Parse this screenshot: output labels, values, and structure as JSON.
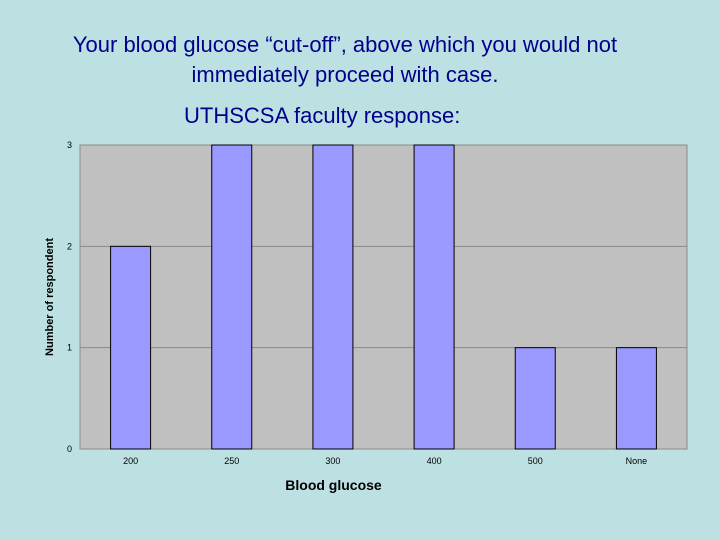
{
  "slide": {
    "title_line1": "Your blood glucose “cut-off”, above which you would not",
    "title_line2": "immediately proceed with case.",
    "subtitle": "UTHSCSA faculty response:"
  },
  "chart_data": {
    "type": "bar",
    "categories": [
      "200",
      "250",
      "300",
      "400",
      "500",
      "None"
    ],
    "values": [
      2,
      3,
      3,
      3,
      1,
      1
    ],
    "xlabel": "Blood glucose",
    "ylabel": "Number of respondent",
    "ylim": [
      0,
      3
    ],
    "yticks": [
      0,
      1,
      2,
      3
    ],
    "grid": true,
    "colors": {
      "bar_fill": "#9999ff",
      "bar_stroke": "#000000",
      "plot_background": "#c0c0c0",
      "gridline": "#8a8a8a",
      "slide_background": "#bde1e3",
      "title_text": "#00008b"
    }
  }
}
